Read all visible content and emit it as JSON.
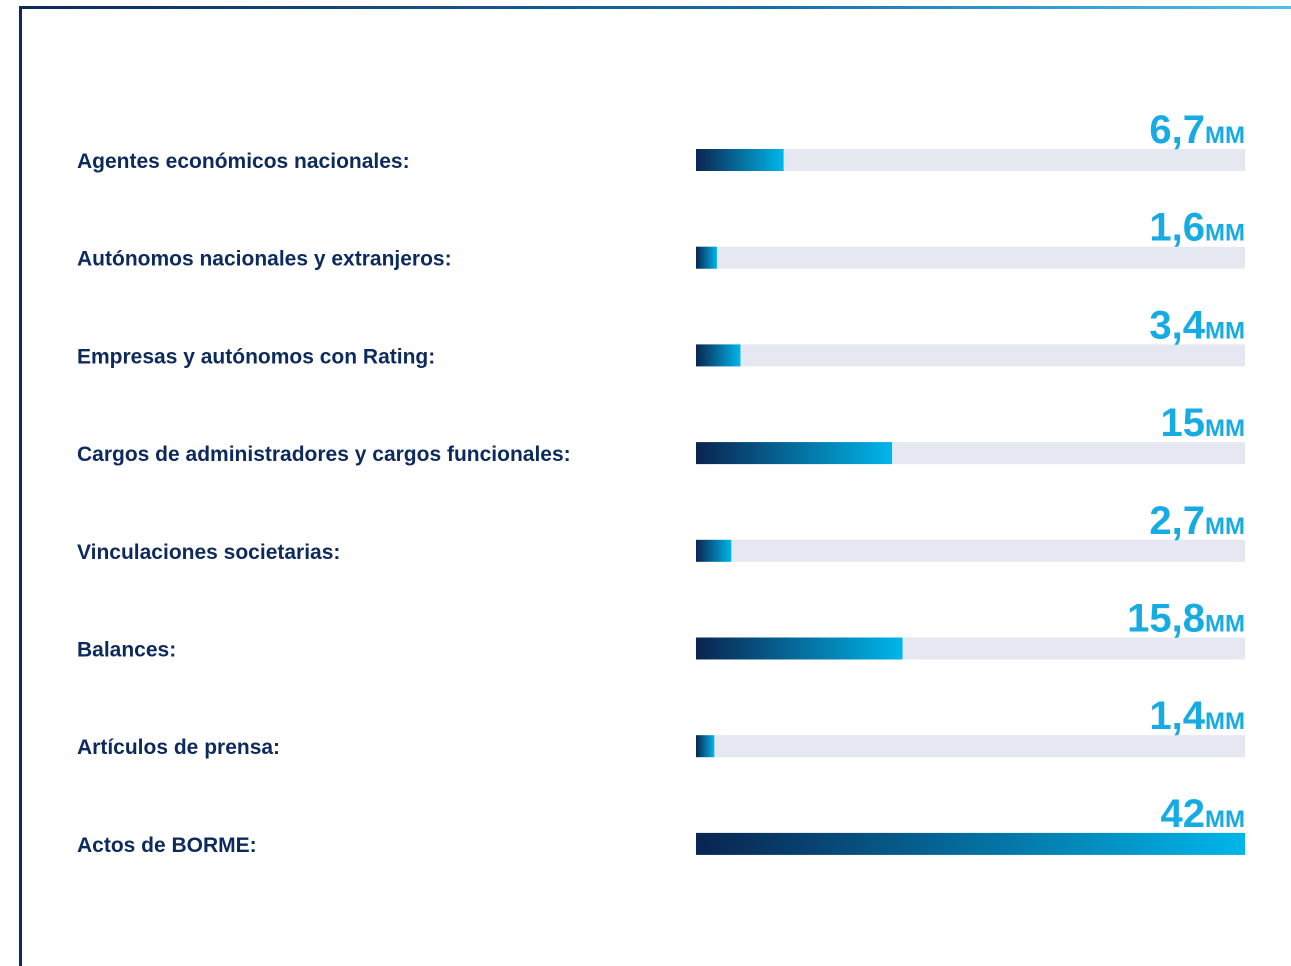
{
  "chart_data": {
    "type": "bar",
    "orientation": "horizontal",
    "categories": [
      "Agentes económicos nacionales:",
      "Autónomos nacionales y extranjeros:",
      "Empresas y autónomos con Rating:",
      "Cargos de administradores y cargos funcionales:",
      "Vinculaciones societarias:",
      "Balances:",
      "Artículos de prensa:",
      "Actos de BORME:"
    ],
    "values": [
      6.7,
      1.6,
      3.4,
      15,
      2.7,
      15.8,
      1.4,
      42
    ],
    "value_labels": [
      "6,7",
      "1,6",
      "3,4",
      "15",
      "2,7",
      "15,8",
      "1,4",
      "42"
    ],
    "unit": "MM",
    "xlim": [
      0,
      42
    ],
    "color_start": "#0a2450",
    "color_end": "#00b6ea",
    "track_color": "#e6e8f1"
  }
}
